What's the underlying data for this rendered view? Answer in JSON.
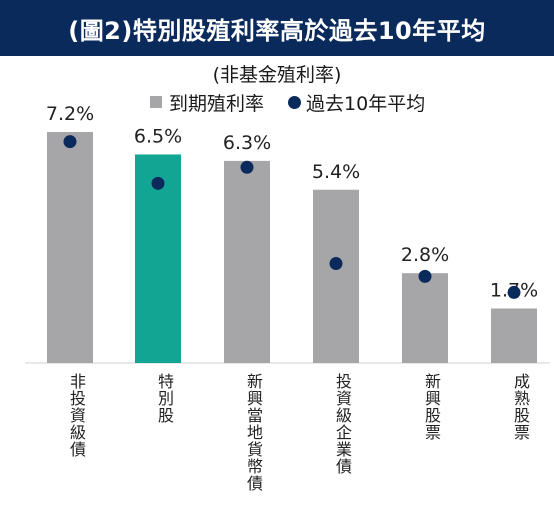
{
  "colors": {
    "title_bg": "#0b2a5c",
    "bar_default": "#a6a6a8",
    "bar_highlight": "#12a594",
    "average_dot": "#0b2a5c"
  },
  "chart_data": {
    "type": "bar",
    "title": "(圖2)特別股殖利率高於過去10年平均",
    "subtitle": "(非基金殖利率)",
    "categories": [
      "非投資級債",
      "特別股",
      "新興當地貨幣債",
      "投資級企業債",
      "新興股票",
      "成熟股票"
    ],
    "series": [
      {
        "name": "到期殖利率",
        "type": "bar",
        "values": [
          7.2,
          6.5,
          6.3,
          5.4,
          2.8,
          1.7
        ],
        "value_labels": [
          "7.2%",
          "6.5%",
          "6.3%",
          "5.4%",
          "2.8%",
          "1.7%"
        ],
        "highlight_index": 1
      },
      {
        "name": "過去10年平均",
        "type": "scatter",
        "values": [
          6.9,
          5.6,
          6.1,
          3.1,
          2.7,
          2.2
        ]
      }
    ],
    "ylim": [
      0,
      7.2
    ],
    "grid": false,
    "legend_position": "top"
  }
}
